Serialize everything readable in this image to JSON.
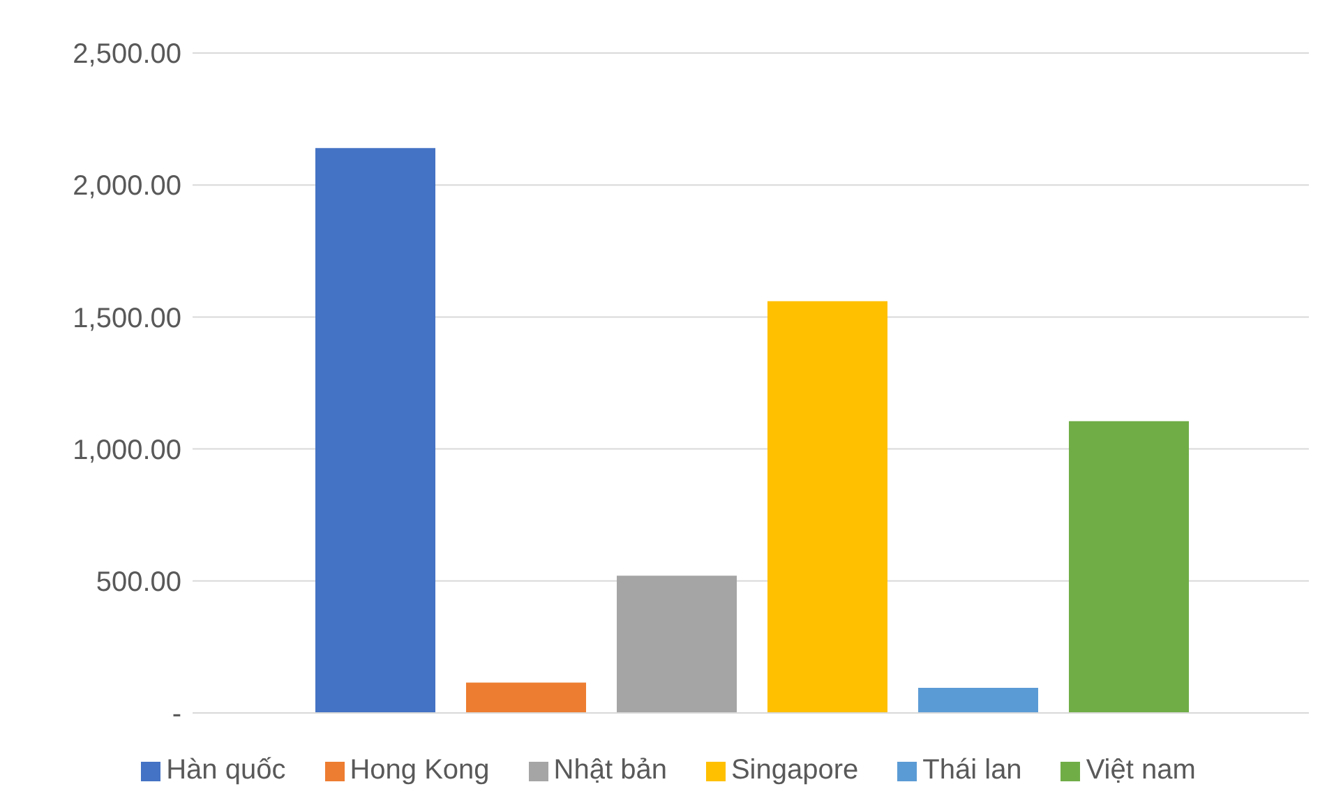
{
  "chart_data": {
    "type": "bar",
    "categories": [
      null
    ],
    "series": [
      {
        "name": "Hàn quốc",
        "color": "#4472c4",
        "values": [
          2140
        ]
      },
      {
        "name": "Hong Kong",
        "color": "#ed7d31",
        "values": [
          115
        ]
      },
      {
        "name": "Nhật bản",
        "color": "#a5a5a5",
        "values": [
          520
        ]
      },
      {
        "name": "Singapore",
        "color": "#ffc000",
        "values": [
          1560
        ]
      },
      {
        "name": "Thái lan",
        "color": "#5b9bd5",
        "values": [
          95
        ]
      },
      {
        "name": "Việt nam",
        "color": "#70ad47",
        "values": [
          1105
        ]
      }
    ],
    "ylim": [
      0,
      2500
    ],
    "yticks": [
      {
        "value": 0,
        "label": "-"
      },
      {
        "value": 500,
        "label": "500.00"
      },
      {
        "value": 1000,
        "label": "1,000.00"
      },
      {
        "value": 1500,
        "label": "1,500.00"
      },
      {
        "value": 2000,
        "label": "2,000.00"
      },
      {
        "value": 2500,
        "label": "2,500.00"
      }
    ],
    "grid": "y",
    "legend": "bottom"
  }
}
